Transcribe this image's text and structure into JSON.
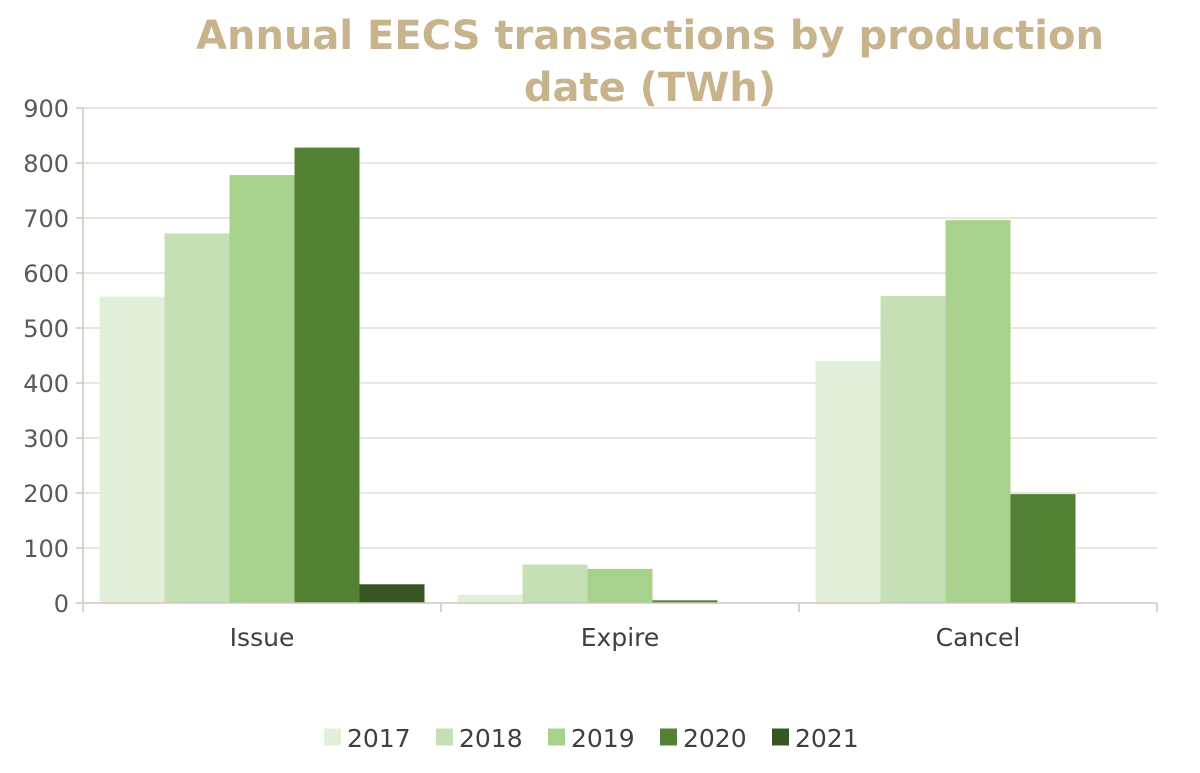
{
  "chart_data": {
    "type": "bar",
    "title": "Annual EECS transactions by production date (TWh)",
    "categories": [
      "Issue",
      "Expire",
      "Cancel"
    ],
    "series": [
      {
        "name": "2017",
        "color": "#e2efda",
        "values": [
          557,
          15,
          440
        ]
      },
      {
        "name": "2018",
        "color": "#c5e0b4",
        "values": [
          672,
          70,
          558
        ]
      },
      {
        "name": "2019",
        "color": "#a9d18e",
        "values": [
          778,
          62,
          696
        ]
      },
      {
        "name": "2020",
        "color": "#548235",
        "values": [
          828,
          5,
          198
        ]
      },
      {
        "name": "2021",
        "color": "#375623",
        "values": [
          34,
          0,
          0
        ]
      }
    ],
    "ylim": [
      0,
      900
    ],
    "yticks": [
      0,
      100,
      200,
      300,
      400,
      500,
      600,
      700,
      800,
      900
    ],
    "xlabel": "",
    "ylabel": "",
    "grid": true,
    "legend": "bottom"
  }
}
